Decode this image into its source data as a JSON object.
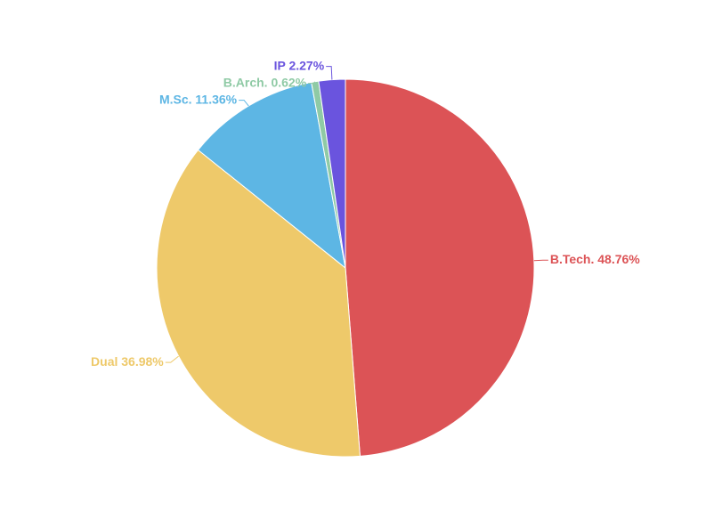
{
  "chart_data": {
    "type": "pie",
    "categories": [
      "B.Tech.",
      "Dual",
      "M.Sc.",
      "B.Arch.",
      "IP"
    ],
    "values": [
      48.76,
      36.98,
      11.36,
      0.62,
      2.27
    ],
    "value_labels": [
      "48.76%",
      "36.98%",
      "11.36%",
      "0.62%",
      "2.27%"
    ],
    "colors": [
      "#dc5356",
      "#eec96a",
      "#5db6e4",
      "#8fcaa5",
      "#6a54de"
    ]
  }
}
